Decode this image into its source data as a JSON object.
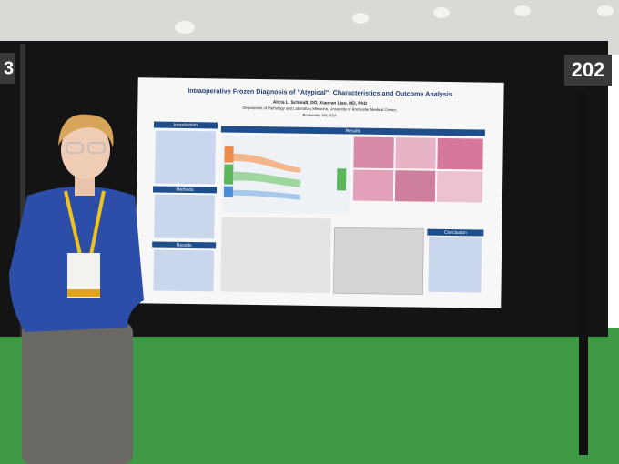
{
  "booth_numbers": [
    "3",
    "202"
  ],
  "poster": {
    "title": "Intraoperative Frozen Diagnosis of \"Atypical\": Characteristics and Outcome Analysis",
    "authors": "Alicia L. Schmidt, DO, Xiaoyan Liao, MD, PhD",
    "affiliation": "Department of Pathology and Laboratory Medicine, University of Rochester Medical Center,",
    "location": "Rochester, NY, USA",
    "sections": [
      "Introduction",
      "Methods",
      "Results",
      "Results",
      "Conclusion"
    ]
  }
}
